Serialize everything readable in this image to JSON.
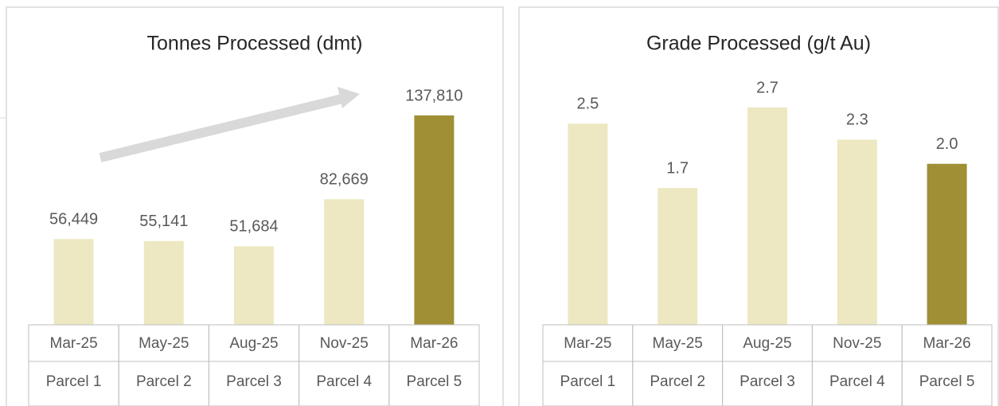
{
  "chart_data": [
    {
      "type": "bar",
      "title": "Tonnes Processed (dmt)",
      "categories": [
        "Mar-25",
        "May-25",
        "Aug-25",
        "Nov-25",
        "Mar-26"
      ],
      "groups": [
        "Parcel 1",
        "Parcel 2",
        "Parcel 3",
        "Parcel 4",
        "Parcel 5"
      ],
      "values": [
        56449,
        55141,
        51684,
        82669,
        137810
      ],
      "value_labels": [
        "56,449",
        "55,141",
        "51,684",
        "82,669",
        "137,810"
      ],
      "colors": [
        "#ede8c2",
        "#ede8c2",
        "#ede8c2",
        "#ede8c2",
        "#a08f35"
      ]
    },
    {
      "type": "bar",
      "title": "Grade Processed (g/t Au)",
      "categories": [
        "Mar-25",
        "May-25",
        "Aug-25",
        "Nov-25",
        "Mar-26"
      ],
      "groups": [
        "Parcel 1",
        "Parcel 2",
        "Parcel 3",
        "Parcel 4",
        "Parcel 5"
      ],
      "values": [
        2.5,
        1.7,
        2.7,
        2.3,
        2.0
      ],
      "value_labels": [
        "2.5",
        "1.7",
        "2.7",
        "2.3",
        "2.0"
      ],
      "colors": [
        "#ede8c2",
        "#ede8c2",
        "#ede8c2",
        "#ede8c2",
        "#a08f35"
      ]
    }
  ]
}
